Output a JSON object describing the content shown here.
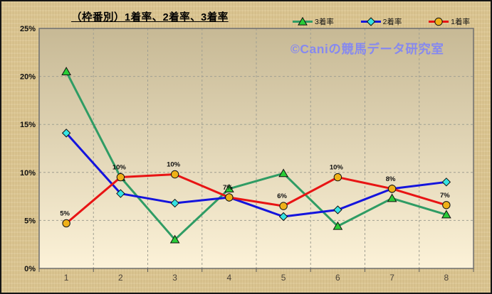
{
  "title": "（枠番別）1着率、2着率、3着率",
  "watermark": "©Caniの競馬データ研究室",
  "colors": {
    "frame_background": "#d9c38f",
    "plot_gradient_top": "#c7b995",
    "plot_gradient_bottom": "#fcf2d8",
    "plot_border": "#6f6f6f",
    "gridline": "#a09f92",
    "tick": "#5a5a5a",
    "y_axis_text": "#111111",
    "x_axis_text": "#4a4238",
    "data_label_text": "#111111",
    "watermark_text": "#8689ef"
  },
  "chart_data": {
    "type": "line",
    "title": "（枠番別）1着率、2着率、3着率",
    "categories": [
      "1",
      "2",
      "3",
      "4",
      "5",
      "6",
      "7",
      "8"
    ],
    "xlabel": "",
    "ylabel": "",
    "ylim": [
      0,
      25
    ],
    "ytick_step": 5,
    "ytick_labels": [
      "0%",
      "5%",
      "10%",
      "15%",
      "20%",
      "25%"
    ],
    "grid": true,
    "legend_position": "top-right",
    "series": [
      {
        "key": "third-place-rate",
        "name": "3着率",
        "line_color": "#2f9c64",
        "marker": "triangle",
        "marker_fill": "#29cc37",
        "values": [
          20.5,
          9.5,
          3.0,
          8.3,
          9.9,
          4.4,
          7.3,
          5.6
        ]
      },
      {
        "key": "second-place-rate",
        "name": "2着率",
        "line_color": "#1414dd",
        "marker": "diamond",
        "marker_fill": "#35e3e3",
        "values": [
          14.1,
          7.8,
          6.8,
          7.4,
          5.4,
          6.1,
          8.3,
          9.0
        ]
      },
      {
        "key": "first-place-rate",
        "name": "1着率",
        "line_color": "#e81414",
        "marker": "circle",
        "marker_fill": "#efb118",
        "values": [
          4.7,
          9.5,
          9.8,
          7.4,
          6.5,
          9.5,
          8.3,
          6.6
        ],
        "labels": [
          "5%",
          "10%",
          "10%",
          "7%",
          "6%",
          "10%",
          "8%",
          "7%"
        ]
      }
    ]
  }
}
